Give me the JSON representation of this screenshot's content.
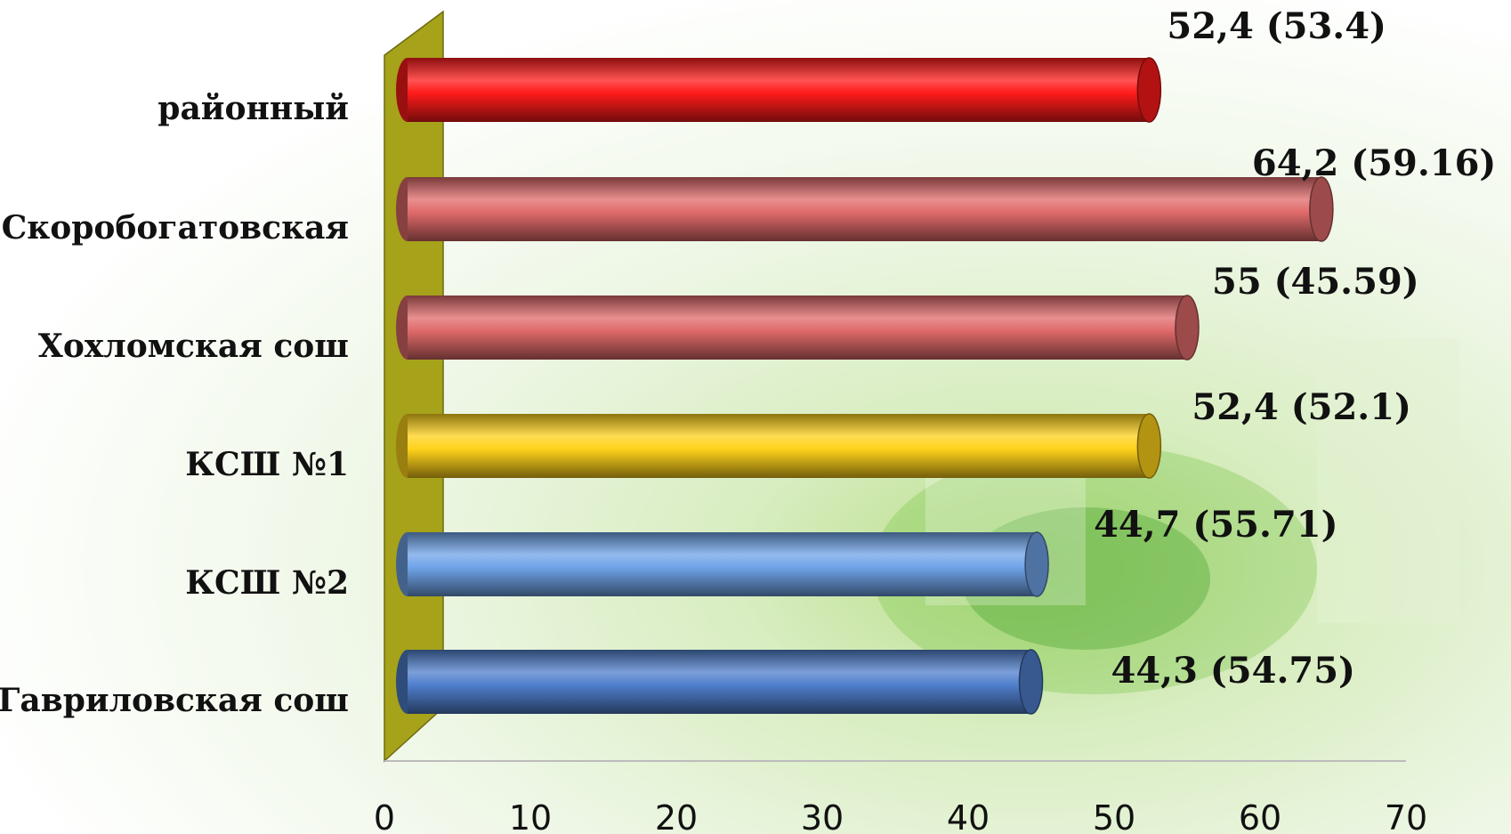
{
  "chart_data": {
    "type": "bar",
    "orientation": "horizontal",
    "title": "",
    "xlabel": "",
    "ylabel": "",
    "xlim": [
      0,
      70
    ],
    "x_ticks": [
      "0",
      "10",
      "20",
      "30",
      "40",
      "50",
      "60",
      "70"
    ],
    "grid": false,
    "legend": "none",
    "categories": [
      "районный",
      "Скоробогатовская",
      "Хохломская сош",
      "КСШ №1",
      "КСШ №2",
      "Гавриловская сош"
    ],
    "values": [
      52.4,
      64.2,
      55,
      52.4,
      44.7,
      44.3
    ],
    "data_labels": [
      "52,4 (53.4)",
      "64,2 (59.16)",
      "55 (45.59)",
      "52,4 (52.1)",
      "44,7 (55.71)",
      "44,3 (54.75)"
    ],
    "colors": [
      "#ff1a1a",
      "#e06a6a",
      "#e06a6a",
      "#ffd21a",
      "#6fa3e8",
      "#4f7fcc"
    ]
  }
}
